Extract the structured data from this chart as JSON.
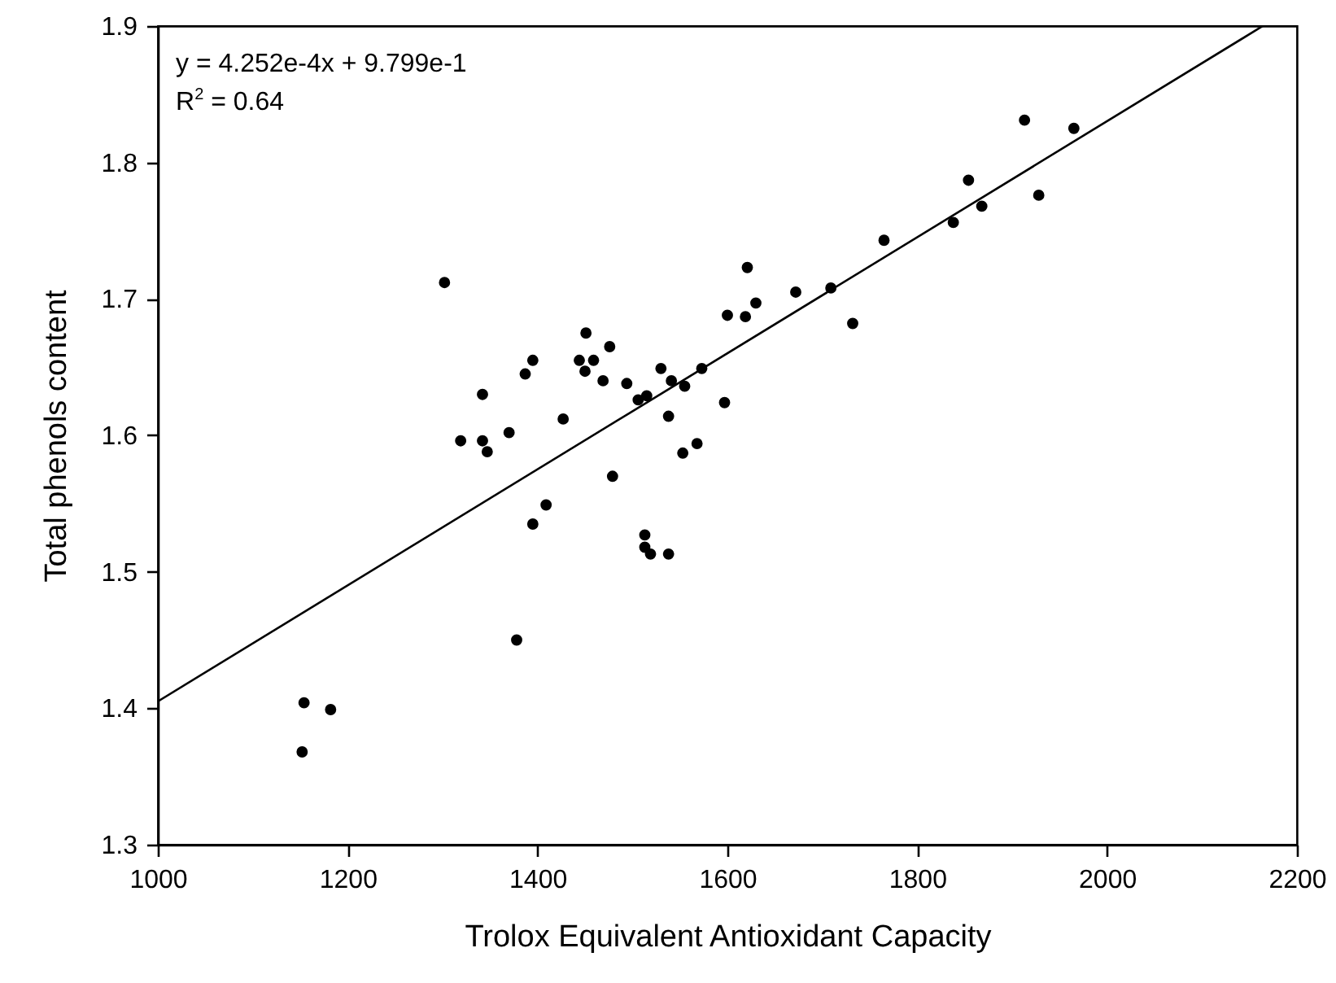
{
  "chart_data": {
    "type": "scatter",
    "xlabel": "Trolox Equivalent Antioxidant Capacity",
    "ylabel": "Total phenols content",
    "xlim": [
      1000,
      2200
    ],
    "xticks": [
      1000,
      1200,
      1400,
      1600,
      1800,
      2000,
      2200
    ],
    "ylim": [
      1.3,
      1.9
    ],
    "yticks": [
      {
        "value": 1.3,
        "label": "1.3"
      },
      {
        "value": 1.4,
        "label": "1.4"
      },
      {
        "value": 1.5,
        "label": "1.5"
      },
      {
        "value": 1.6,
        "label": "1.6"
      },
      {
        "value": 1.7,
        "label": "1.7"
      },
      {
        "value": 1.8,
        "label": "1.8"
      },
      {
        "value": 1.9,
        "label": "1.9"
      }
    ],
    "grid": false,
    "marker": "circle",
    "annotations": [
      "y = 4.252e-4x + 9.799e-1",
      "R$^{2}$ = 0.64"
    ],
    "series": [
      {
        "color": "#000000",
        "x": [
          1302,
          1319,
          1342,
          1347,
          1370,
          1387,
          1395,
          1427,
          1444,
          1451,
          1450,
          1459,
          1469,
          1476,
          1494,
          1479,
          1506,
          1515,
          1530,
          1538,
          1541,
          1555,
          1573,
          1597,
          1553,
          1568,
          1600,
          1621,
          1619,
          1630,
          1672,
          1709,
          1732,
          1765,
          1838,
          1854,
          1868,
          1913,
          1928,
          1965,
          1409,
          1395,
          1513,
          1513,
          1519,
          1538,
          1378,
          1154,
          1182,
          1152,
          1342
        ],
        "values": [
          1.712,
          1.596,
          1.63,
          1.588,
          1.602,
          1.645,
          1.655,
          1.612,
          1.655,
          1.675,
          1.647,
          1.655,
          1.64,
          1.665,
          1.638,
          1.57,
          1.626,
          1.629,
          1.649,
          1.614,
          1.64,
          1.636,
          1.649,
          1.624,
          1.587,
          1.594,
          1.688,
          1.723,
          1.687,
          1.697,
          1.705,
          1.708,
          1.682,
          1.743,
          1.756,
          1.787,
          1.768,
          1.831,
          1.776,
          1.825,
          1.549,
          1.535,
          1.527,
          1.518,
          1.513,
          1.513,
          1.45,
          1.404,
          1.399,
          1.368,
          1.596
        ]
      },
      {
        "type": "line",
        "color": "#000000",
        "line_style": "solid",
        "marker": "none",
        "x": [
          1000,
          2164
        ],
        "values": [
          1.405,
          1.9
        ]
      }
    ]
  }
}
